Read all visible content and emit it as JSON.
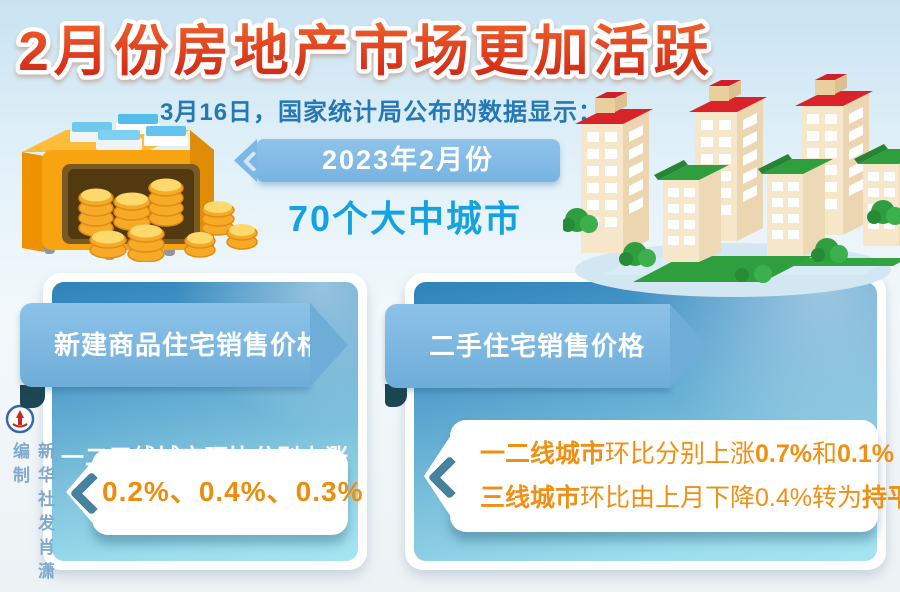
{
  "header": {
    "title": "2月份房地产市场更加活跃",
    "subtitle": "3月16日，国家统计局公布的数据显示："
  },
  "hero": {
    "period_badge": "2023年2月份",
    "scope": "70个大中城市"
  },
  "panels": {
    "new_homes": {
      "header": "新建商品住宅销售价格",
      "lead": "一二三线城市环比分别上涨",
      "values": "0.2%、0.4%、0.3%"
    },
    "secondhand": {
      "header": "二手住宅销售价格",
      "line1": [
        {
          "t": "一二线城市",
          "b": true
        },
        {
          "t": "环比分别上涨",
          "b": false
        },
        {
          "t": "0.7%",
          "b": true
        },
        {
          "t": "和",
          "b": false
        },
        {
          "t": "0.1%",
          "b": true
        }
      ],
      "line2": [
        {
          "t": "三线城市",
          "b": true
        },
        {
          "t": "环比由上月下降0.4%转为",
          "b": false
        },
        {
          "t": "持平",
          "b": true
        }
      ]
    }
  },
  "credit": {
    "byline": "新华社发肖潇编制"
  },
  "colors": {
    "title_red": "#d8331c",
    "subtitle_blue": "#2478b6",
    "scope_blue": "#14a3e0",
    "ribbon_blue": "#7db9e2",
    "panel_top_blue": "#2e83ba",
    "panel_bottom_cyan": "#a6e4f1",
    "bubble_orange": "#ee8c0c",
    "fold_dark_teal": "#1d4653",
    "roof_red": "#d8232b",
    "roof_green": "#2f9e3f",
    "coin_gold": "#f5ab28"
  }
}
